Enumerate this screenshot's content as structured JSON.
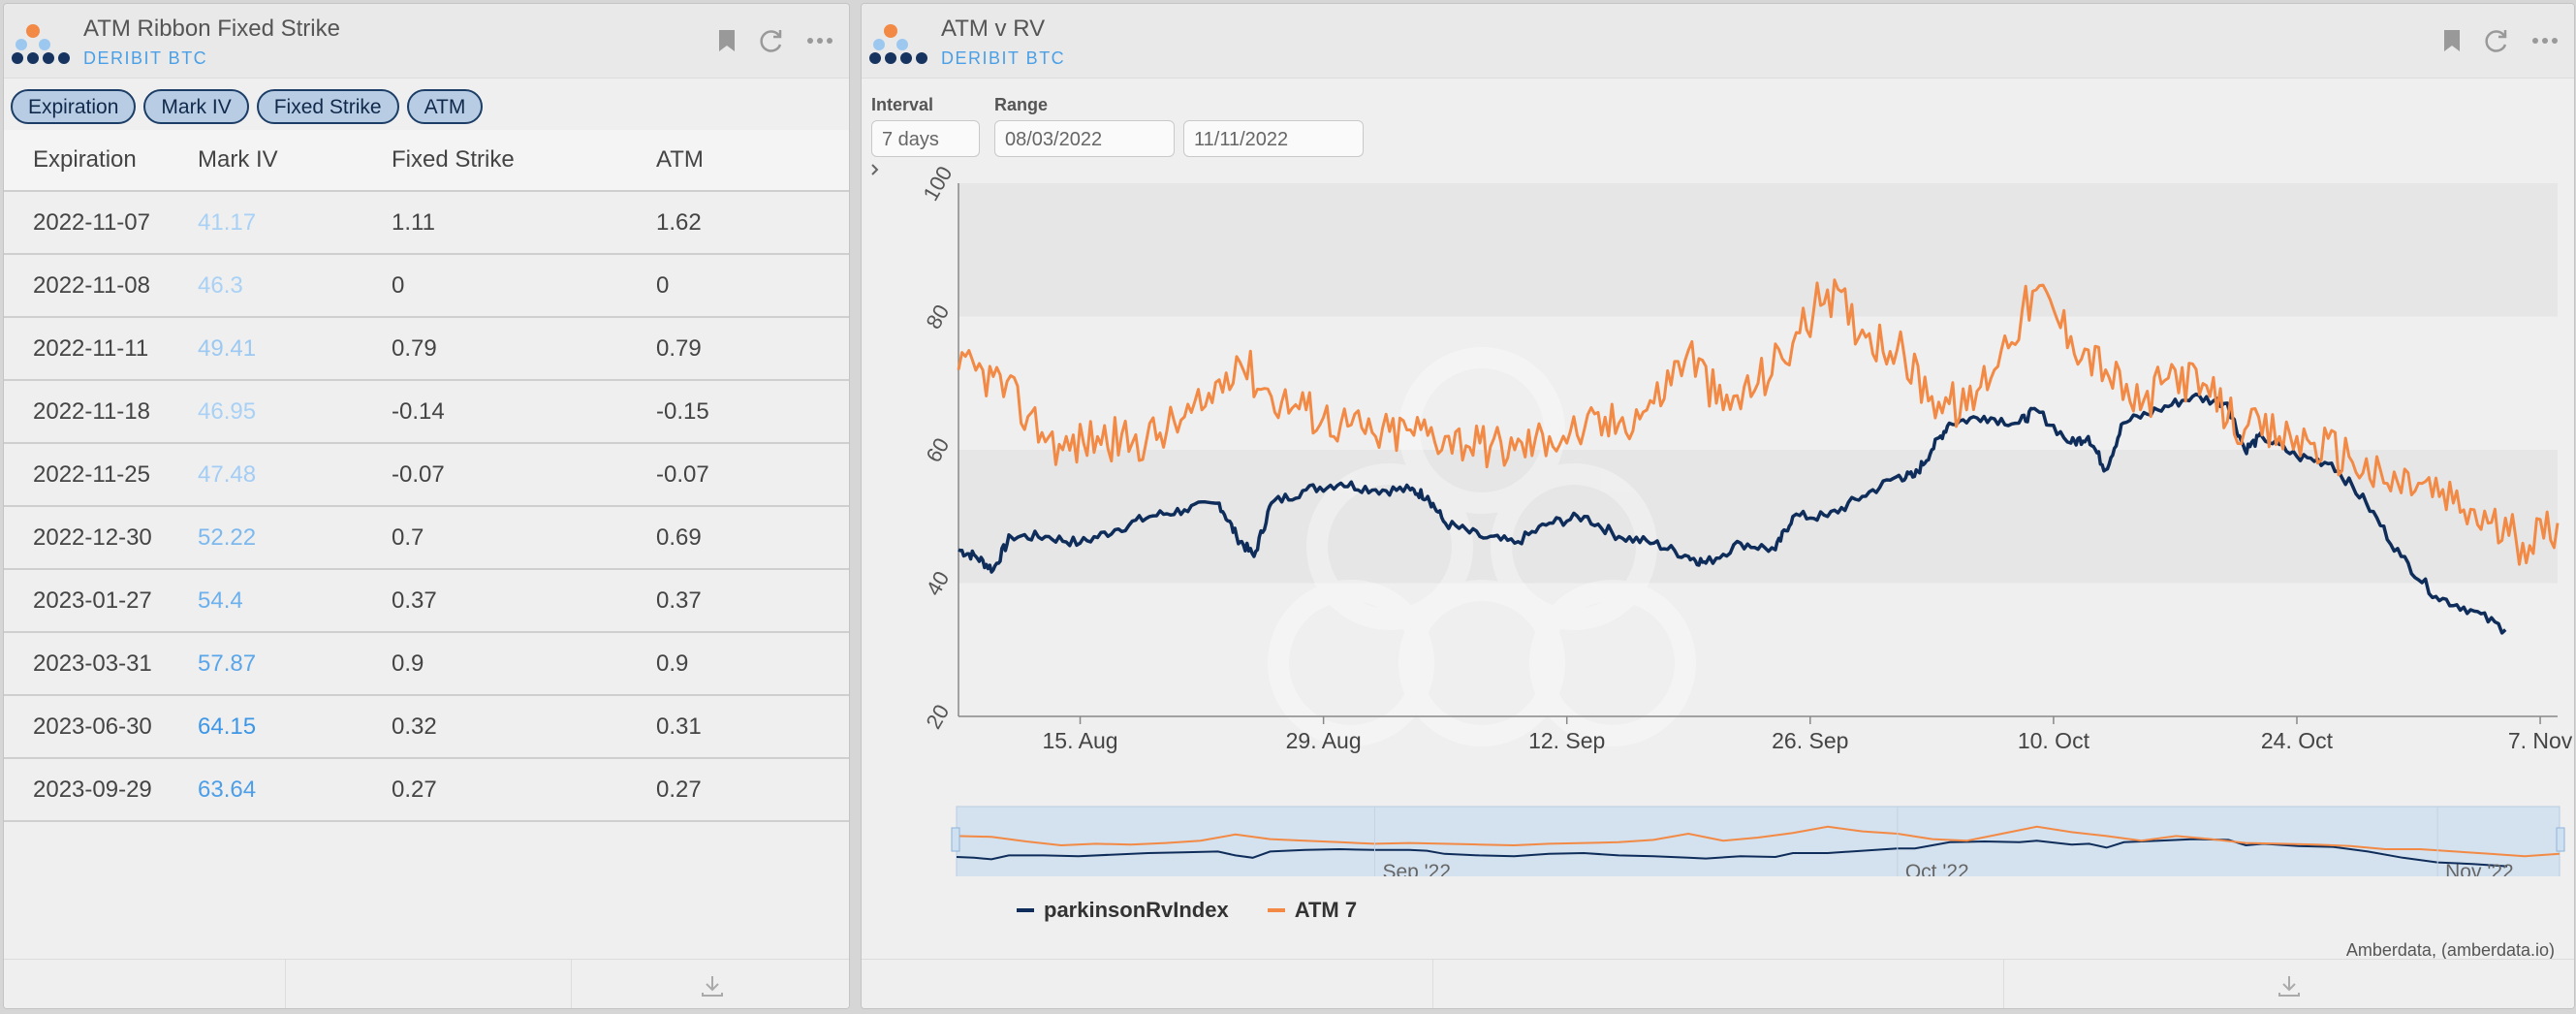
{
  "left": {
    "title": "ATM Ribbon Fixed Strike",
    "subtitle": "DERIBIT BTC",
    "tags": [
      "Expiration",
      "Mark IV",
      "Fixed Strike",
      "ATM"
    ],
    "columns": [
      "Expiration",
      "Mark IV",
      "Fixed Strike",
      "ATM"
    ],
    "rows": [
      {
        "expiration": "2022-11-07",
        "mark_iv": "41.17",
        "fixed_strike": "1.11",
        "atm": "1.62"
      },
      {
        "expiration": "2022-11-08",
        "mark_iv": "46.3",
        "fixed_strike": "0",
        "atm": "0"
      },
      {
        "expiration": "2022-11-11",
        "mark_iv": "49.41",
        "fixed_strike": "0.79",
        "atm": "0.79"
      },
      {
        "expiration": "2022-11-18",
        "mark_iv": "46.95",
        "fixed_strike": "-0.14",
        "atm": "-0.15"
      },
      {
        "expiration": "2022-11-25",
        "mark_iv": "47.48",
        "fixed_strike": "-0.07",
        "atm": "-0.07"
      },
      {
        "expiration": "2022-12-30",
        "mark_iv": "52.22",
        "fixed_strike": "0.7",
        "atm": "0.69"
      },
      {
        "expiration": "2023-01-27",
        "mark_iv": "54.4",
        "fixed_strike": "0.37",
        "atm": "0.37"
      },
      {
        "expiration": "2023-03-31",
        "mark_iv": "57.87",
        "fixed_strike": "0.9",
        "atm": "0.9"
      },
      {
        "expiration": "2023-06-30",
        "mark_iv": "64.15",
        "fixed_strike": "0.32",
        "atm": "0.31"
      },
      {
        "expiration": "2023-09-29",
        "mark_iv": "63.64",
        "fixed_strike": "0.27",
        "atm": "0.27"
      }
    ],
    "mark_iv_colors": [
      "#a9d1f5",
      "#a9d1f5",
      "#9bc9f2",
      "#a9d1f5",
      "#a3cdf4",
      "#7db9ee",
      "#6cb0ec",
      "#5aa6ea",
      "#3d97e6",
      "#4c9ee8"
    ]
  },
  "right": {
    "title": "ATM v RV",
    "subtitle": "DERIBIT BTC",
    "interval_label": "Interval",
    "interval_value": "7 days",
    "range_label": "Range",
    "range_start": "08/03/2022",
    "range_end": "11/11/2022",
    "credit": "Amberdata, (amberdata.io)",
    "navigator_labels": [
      "Sep '22",
      "Oct '22",
      "Nov '22"
    ]
  },
  "icons": [
    "bookmark-icon",
    "refresh-icon",
    "more-icon",
    "download-icon"
  ],
  "colors": {
    "rv": "#0f2d5a",
    "atm": "#f28a45",
    "accent": "#4a9fe6",
    "tag_bg": "#b8cde4"
  },
  "chart_data": {
    "type": "line",
    "title": "",
    "xlabel": "",
    "ylabel": "",
    "ylim": [
      20,
      100
    ],
    "yticks": [
      20,
      40,
      60,
      80,
      100
    ],
    "xlim": [
      "2022-08-08",
      "2022-11-08"
    ],
    "xtick_labels": [
      "15. Aug",
      "29. Aug",
      "12. Sep",
      "26. Sep",
      "10. Oct",
      "24. Oct",
      "7. Nov"
    ],
    "xtick_dates": [
      "2022-08-15",
      "2022-08-29",
      "2022-09-12",
      "2022-09-26",
      "2022-10-10",
      "2022-10-24",
      "2022-11-07"
    ],
    "grid": "alternating horizontal bands",
    "legend": "bottom-left",
    "series": [
      {
        "name": "parkinsonRvIndex",
        "color": "#0f2d5a",
        "points": [
          [
            "2022-08-08",
            45
          ],
          [
            "2022-08-09",
            44
          ],
          [
            "2022-08-10",
            42
          ],
          [
            "2022-08-11",
            47
          ],
          [
            "2022-08-13",
            47
          ],
          [
            "2022-08-15",
            46
          ],
          [
            "2022-08-17",
            48
          ],
          [
            "2022-08-19",
            50
          ],
          [
            "2022-08-21",
            51
          ],
          [
            "2022-08-23",
            52
          ],
          [
            "2022-08-24",
            47
          ],
          [
            "2022-08-25",
            44
          ],
          [
            "2022-08-26",
            52
          ],
          [
            "2022-08-28",
            54
          ],
          [
            "2022-08-30",
            55
          ],
          [
            "2022-09-01",
            54
          ],
          [
            "2022-09-03",
            54
          ],
          [
            "2022-09-04",
            53
          ],
          [
            "2022-09-05",
            49
          ],
          [
            "2022-09-07",
            47
          ],
          [
            "2022-09-09",
            46
          ],
          [
            "2022-09-11",
            49
          ],
          [
            "2022-09-13",
            50
          ],
          [
            "2022-09-15",
            47
          ],
          [
            "2022-09-17",
            46
          ],
          [
            "2022-09-19",
            44
          ],
          [
            "2022-09-20",
            43
          ],
          [
            "2022-09-22",
            46
          ],
          [
            "2022-09-24",
            45
          ],
          [
            "2022-09-25",
            50
          ],
          [
            "2022-09-27",
            50
          ],
          [
            "2022-09-29",
            53
          ],
          [
            "2022-10-01",
            56
          ],
          [
            "2022-10-02",
            56
          ],
          [
            "2022-10-03",
            60
          ],
          [
            "2022-10-04",
            64
          ],
          [
            "2022-10-06",
            65
          ],
          [
            "2022-10-08",
            64
          ],
          [
            "2022-10-09",
            66
          ],
          [
            "2022-10-11",
            61
          ],
          [
            "2022-10-12",
            62
          ],
          [
            "2022-10-13",
            57
          ],
          [
            "2022-10-14",
            64
          ],
          [
            "2022-10-16",
            66
          ],
          [
            "2022-10-18",
            68
          ],
          [
            "2022-10-20",
            67
          ],
          [
            "2022-10-21",
            60
          ],
          [
            "2022-10-22",
            62
          ],
          [
            "2022-10-24",
            59
          ],
          [
            "2022-10-26",
            58
          ],
          [
            "2022-10-28",
            52
          ],
          [
            "2022-10-30",
            44
          ],
          [
            "2022-11-01",
            38
          ],
          [
            "2022-11-03",
            36
          ],
          [
            "2022-11-05",
            33
          ]
        ]
      },
      {
        "name": "ATM 7",
        "color": "#f28a45",
        "points": [
          [
            "2022-08-08",
            72
          ],
          [
            "2022-08-10",
            71
          ],
          [
            "2022-08-12",
            65
          ],
          [
            "2022-08-14",
            60
          ],
          [
            "2022-08-16",
            62
          ],
          [
            "2022-08-18",
            61
          ],
          [
            "2022-08-20",
            63
          ],
          [
            "2022-08-22",
            66
          ],
          [
            "2022-08-24",
            74
          ],
          [
            "2022-08-26",
            68
          ],
          [
            "2022-08-28",
            66
          ],
          [
            "2022-08-30",
            64
          ],
          [
            "2022-09-01",
            62
          ],
          [
            "2022-09-03",
            63
          ],
          [
            "2022-09-05",
            62
          ],
          [
            "2022-09-07",
            61
          ],
          [
            "2022-09-09",
            60
          ],
          [
            "2022-09-11",
            62
          ],
          [
            "2022-09-13",
            63
          ],
          [
            "2022-09-15",
            64
          ],
          [
            "2022-09-17",
            67
          ],
          [
            "2022-09-19",
            75
          ],
          [
            "2022-09-21",
            66
          ],
          [
            "2022-09-23",
            70
          ],
          [
            "2022-09-25",
            76
          ],
          [
            "2022-09-27",
            84
          ],
          [
            "2022-09-29",
            78
          ],
          [
            "2022-10-01",
            75
          ],
          [
            "2022-10-03",
            68
          ],
          [
            "2022-10-05",
            66
          ],
          [
            "2022-10-07",
            75
          ],
          [
            "2022-10-09",
            84
          ],
          [
            "2022-10-11",
            77
          ],
          [
            "2022-10-13",
            72
          ],
          [
            "2022-10-15",
            66
          ],
          [
            "2022-10-17",
            72
          ],
          [
            "2022-10-19",
            68
          ],
          [
            "2022-10-21",
            63
          ],
          [
            "2022-10-23",
            62
          ],
          [
            "2022-10-25",
            61
          ],
          [
            "2022-10-27",
            59
          ],
          [
            "2022-10-29",
            55
          ],
          [
            "2022-10-31",
            55
          ],
          [
            "2022-11-02",
            52
          ],
          [
            "2022-11-04",
            49
          ],
          [
            "2022-11-06",
            46
          ],
          [
            "2022-11-08",
            49
          ]
        ]
      }
    ]
  }
}
